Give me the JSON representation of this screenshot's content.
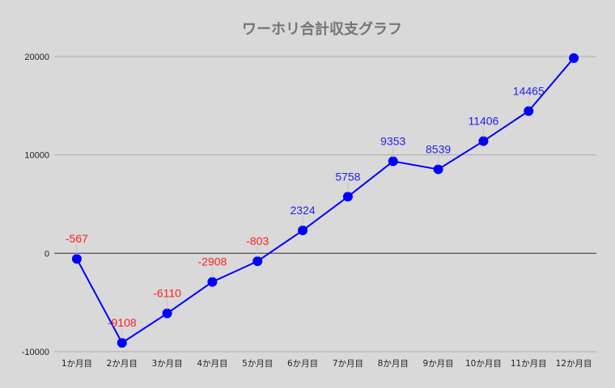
{
  "chart_data": {
    "type": "line",
    "title": "ワーホリ合計収支グラフ",
    "xlabel": "",
    "ylabel": "",
    "categories": [
      "1か月目",
      "2か月目",
      "3か月目",
      "4か月目",
      "5か月目",
      "6か月目",
      "7か月目",
      "8か月目",
      "9か月目",
      "10か月目",
      "11か月目",
      "12か月目"
    ],
    "series": [
      {
        "name": "合計収支",
        "values": [
          -567,
          -9108,
          -6110,
          -2908,
          -803,
          2324,
          5758,
          9353,
          8539,
          11406,
          14465,
          19850
        ],
        "data_labels": [
          "-567",
          "-9108",
          "-6110",
          "-2908",
          "-803",
          "2324",
          "5758",
          "9353",
          "8539",
          "11406",
          "14465",
          ""
        ]
      }
    ],
    "ylim": [
      -10000,
      20000
    ],
    "yticks": [
      -10000,
      0,
      10000,
      20000
    ],
    "ytick_labels": [
      "-10000",
      "0",
      "10000",
      "20000"
    ],
    "grid": true,
    "legend": "none"
  },
  "colors": {
    "background": "#d9d9d9",
    "line": "#0000ff",
    "positive_label": "#2222ee",
    "negative_label": "#ff2020",
    "gridline": "#aaaaaa",
    "zero_line": "#444444",
    "title": "#757575"
  }
}
